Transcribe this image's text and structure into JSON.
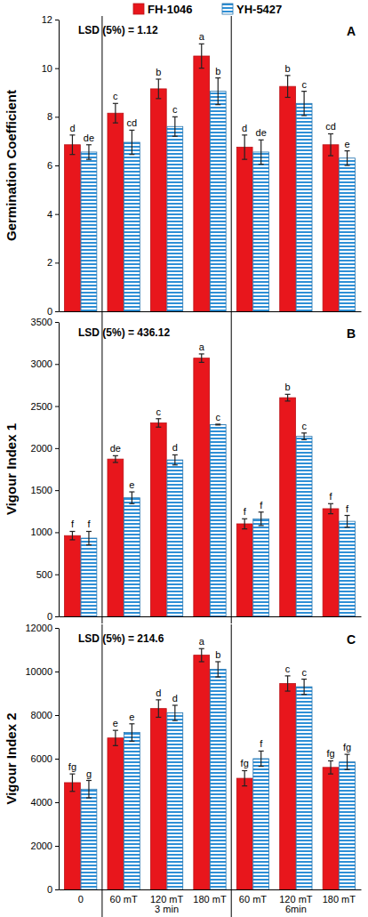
{
  "chart_data": [
    {
      "type": "bar",
      "panel_label": "A",
      "annotation": "LSD (5%) = 1.12",
      "y_label": "Germination Coefficient",
      "legend": "top",
      "categories": [
        null,
        null,
        null,
        null,
        null,
        null,
        null
      ],
      "ylim": [
        0,
        12
      ],
      "yticks": [
        0,
        2,
        4,
        6,
        8,
        10,
        12
      ],
      "series": [
        {
          "name": "FH-1046",
          "color": "#e8161c",
          "values": [
            6.85,
            8.15,
            9.15,
            10.5,
            6.75,
            9.25,
            6.85
          ],
          "errors": [
            0.4,
            0.4,
            0.4,
            0.5,
            0.5,
            0.45,
            0.45
          ],
          "letters": [
            "d",
            "c",
            "b",
            "a",
            "d",
            "b",
            "cd"
          ]
        },
        {
          "name": "YH-5427",
          "color": "#2e8fd6",
          "values": [
            6.55,
            6.95,
            7.6,
            9.05,
            6.55,
            8.55,
            6.3
          ],
          "errors": [
            0.3,
            0.5,
            0.4,
            0.55,
            0.5,
            0.5,
            0.3
          ],
          "letters": [
            "de",
            "cd",
            "c",
            "b",
            "de",
            "c",
            "e"
          ]
        }
      ]
    },
    {
      "type": "bar",
      "panel_label": "B",
      "annotation": "LSD (5%) = 436.12",
      "y_label": "Vigour Index 1",
      "categories": [
        null,
        null,
        null,
        null,
        null,
        null,
        null
      ],
      "ylim": [
        0,
        3500
      ],
      "yticks": [
        0,
        500,
        1000,
        1500,
        2000,
        2500,
        3000,
        3500
      ],
      "series": [
        {
          "name": "FH-1046",
          "color": "#e8161c",
          "values": [
            960,
            1870,
            2300,
            3070,
            1100,
            2600,
            1280
          ],
          "errors": [
            50,
            40,
            50,
            50,
            60,
            40,
            60
          ],
          "letters": [
            "f",
            "de",
            "c",
            "a",
            "f",
            "b",
            "f"
          ]
        },
        {
          "name": "YH-5427",
          "color": "#2e8fd6",
          "values": [
            930,
            1410,
            1860,
            2280,
            1160,
            2140,
            1130
          ],
          "errors": [
            80,
            70,
            60,
            5,
            80,
            40,
            70
          ],
          "letters": [
            "f",
            "e",
            "d",
            "c",
            "f",
            "c",
            "f"
          ]
        }
      ]
    },
    {
      "type": "bar",
      "panel_label": "C",
      "annotation": "LSD (5%) = 214.6",
      "y_label": "Vigour Index 2",
      "categories": [
        "0",
        "60 mT",
        "120 mT",
        "180 mT",
        "60 mT",
        "120 mT",
        "180 mT"
      ],
      "x_groups": [
        {
          "label": "3 min",
          "categories": [
            1,
            2,
            3
          ]
        },
        {
          "label": "6min",
          "categories": [
            4,
            5,
            6
          ]
        }
      ],
      "ylim": [
        0,
        12000
      ],
      "yticks": [
        0,
        2000,
        4000,
        6000,
        8000,
        10000,
        12000
      ],
      "series": [
        {
          "name": "FH-1046",
          "color": "#e8161c",
          "values": [
            4900,
            6950,
            8300,
            10750,
            5100,
            9450,
            5600
          ],
          "errors": [
            400,
            350,
            400,
            300,
            350,
            350,
            300
          ],
          "letters": [
            "fg",
            "e",
            "d",
            "a",
            "fg",
            "c",
            "fg"
          ]
        },
        {
          "name": "YH-5427",
          "color": "#2e8fd6",
          "values": [
            4600,
            7200,
            8100,
            10100,
            6000,
            9300,
            5850
          ],
          "errors": [
            400,
            400,
            350,
            350,
            350,
            350,
            350
          ],
          "letters": [
            "g",
            "e",
            "d",
            "b",
            "f",
            "c",
            "fg"
          ]
        }
      ]
    }
  ]
}
